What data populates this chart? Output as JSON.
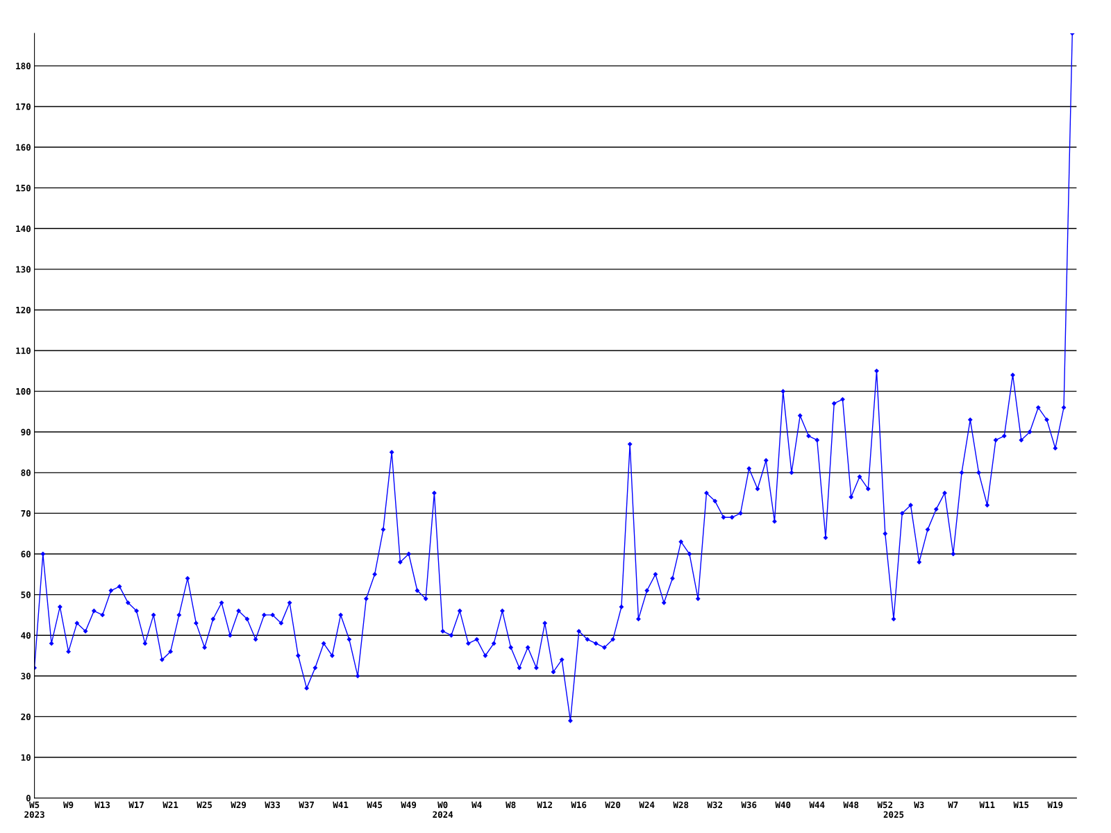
{
  "chart_data": {
    "type": "line",
    "categories": [
      "W5\n2023",
      null,
      null,
      null,
      "W9",
      null,
      null,
      null,
      "W13",
      null,
      null,
      null,
      "W17",
      null,
      null,
      null,
      "W21",
      null,
      null,
      null,
      "W25",
      null,
      null,
      null,
      "W29",
      null,
      null,
      null,
      "W33",
      null,
      null,
      null,
      "W37",
      null,
      null,
      null,
      "W41",
      null,
      null,
      null,
      "W45",
      null,
      null,
      null,
      "W49",
      null,
      null,
      null,
      "W0\n2024",
      null,
      null,
      null,
      "W4",
      null,
      null,
      null,
      "W8",
      null,
      null,
      null,
      "W12",
      null,
      null,
      null,
      "W16",
      null,
      null,
      null,
      "W20",
      null,
      null,
      null,
      "W24",
      null,
      null,
      null,
      "W28",
      null,
      null,
      null,
      "W32",
      null,
      null,
      null,
      "W36",
      null,
      null,
      null,
      "W40",
      null,
      null,
      null,
      "W44",
      null,
      null,
      null,
      "W48",
      null,
      null,
      null,
      "W52",
      "\n2025",
      null,
      null,
      "W3",
      null,
      null,
      null,
      "W7",
      null,
      null,
      null,
      "W11",
      null,
      null,
      null,
      "W15",
      null,
      null,
      null,
      "W19",
      null,
      null
    ],
    "series": [
      {
        "color": "#0000ff",
        "values": [
          32,
          60,
          38,
          47,
          36,
          43,
          41,
          46,
          45,
          51,
          52,
          48,
          46,
          38,
          45,
          34,
          36,
          45,
          54,
          43,
          37,
          44,
          48,
          40,
          46,
          44,
          39,
          45,
          45,
          43,
          48,
          35,
          27,
          32,
          38,
          35,
          45,
          39,
          30,
          49,
          55,
          66,
          85,
          58,
          60,
          51,
          49,
          75,
          41,
          40,
          46,
          38,
          39,
          35,
          38,
          46,
          37,
          32,
          37,
          32,
          43,
          31,
          34,
          19,
          41,
          39,
          38,
          37,
          39,
          47,
          87,
          44,
          51,
          55,
          48,
          54,
          63,
          60,
          49,
          75,
          73,
          69,
          69,
          70,
          81,
          76,
          83,
          68,
          100,
          80,
          94,
          89,
          88,
          64,
          97,
          98,
          74,
          79,
          76,
          105,
          65,
          44,
          70,
          72,
          58,
          66,
          71,
          75,
          60,
          80,
          93,
          80,
          72,
          88,
          89,
          104,
          88,
          90,
          96,
          93,
          86,
          96,
          188
        ]
      }
    ],
    "ylim": [
      0,
      188
    ],
    "yticks": [
      0,
      10,
      20,
      30,
      40,
      50,
      60,
      70,
      80,
      90,
      100,
      110,
      120,
      130,
      140,
      150,
      160,
      170,
      180
    ],
    "grid": "y",
    "marker": "diamond",
    "line_style": "solid",
    "legend": false
  }
}
